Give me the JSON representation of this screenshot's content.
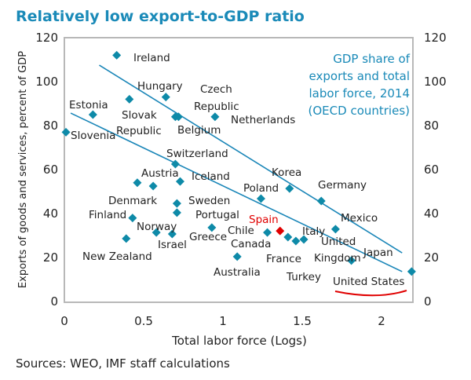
{
  "chart_data": {
    "type": "scatter",
    "title": "Relatively low export-to-GDP  ratio",
    "annotation": [
      "GDP share of",
      "exports and total",
      "labor force, 2014",
      "(OECD countries)"
    ],
    "xlabel": "Total labor force (Logs)",
    "ylabel": "Exports of goods and services, percent of GDP",
    "source": "Sources: WEO, IMF staff calculations",
    "xlim": [
      0,
      2.2
    ],
    "ylim": [
      0,
      120
    ],
    "xticks": [
      "0",
      "0.5",
      "1",
      "1.5",
      "2"
    ],
    "xtick_values": [
      0,
      0.5,
      1,
      1.5,
      2
    ],
    "yticks": [
      "0",
      "20",
      "40",
      "60",
      "80",
      "100",
      "120"
    ],
    "ytick_values": [
      0,
      20,
      40,
      60,
      80,
      100,
      120
    ],
    "grid": false,
    "colors": {
      "point": "#0e8aa8",
      "highlight": "#e00000",
      "trend": "#1a86b8",
      "title": "#1a8ab8"
    },
    "points": [
      {
        "x": 0.33,
        "y": 112,
        "label": "Ireland"
      },
      {
        "x": 0.64,
        "y": 93,
        "label": "Hungary"
      },
      {
        "x": 0.41,
        "y": 92,
        "label": "Slovak Republic"
      },
      {
        "x": 0.18,
        "y": 85,
        "label": "Estonia"
      },
      {
        "x": 0.01,
        "y": 77,
        "label": "Slovenia"
      },
      {
        "x": 0.7,
        "y": 84,
        "label": "Belgium"
      },
      {
        "x": 0.72,
        "y": 84,
        "label": ""
      },
      {
        "x": 0.95,
        "y": 84,
        "label": "Czech Republic"
      },
      {
        "x": 0.7,
        "y": 62.5,
        "label": "Switzerland"
      },
      {
        "x": 0.46,
        "y": 54,
        "label": "Denmark"
      },
      {
        "x": 0.56,
        "y": 52.5,
        "label": "Austria"
      },
      {
        "x": 0.73,
        "y": 54.6,
        "label": "Iceland"
      },
      {
        "x": 0.71,
        "y": 44.6,
        "label": "Sweden"
      },
      {
        "x": 0.71,
        "y": 40.4,
        "label": "Portugal"
      },
      {
        "x": 0.43,
        "y": 38,
        "label": "Finland"
      },
      {
        "x": 0.58,
        "y": 31.4,
        "label": "Norway"
      },
      {
        "x": 0.68,
        "y": 30.7,
        "label": "Israel"
      },
      {
        "x": 0.39,
        "y": 28.6,
        "label": "New Zealand"
      },
      {
        "x": 0.93,
        "y": 33.6,
        "label": "Greece"
      },
      {
        "x": 1.09,
        "y": 20.4,
        "label": "Australia"
      },
      {
        "x": 1.24,
        "y": 46.8,
        "label": "Poland"
      },
      {
        "x": 1.42,
        "y": 51.4,
        "label": "Korea"
      },
      {
        "x": 1.62,
        "y": 45.7,
        "label": "Germany"
      },
      {
        "x": 1.71,
        "y": 32.9,
        "label": "Mexico"
      },
      {
        "x": 1.28,
        "y": 31.4,
        "label": "Chile"
      },
      {
        "x": 1.36,
        "y": 32.1,
        "label": "Spain",
        "highlight": true
      },
      {
        "x": 1.41,
        "y": 29.3,
        "label": "Canada"
      },
      {
        "x": 1.46,
        "y": 27.5,
        "label": "France"
      },
      {
        "x": 1.51,
        "y": 28.2,
        "label": "Italy"
      },
      {
        "x": 1.81,
        "y": 18.6,
        "label": "United Kingdom"
      },
      {
        "x": 2.19,
        "y": 13.6,
        "label": "United States"
      }
    ],
    "extra_labels": [
      "Netherlands",
      "Turkey",
      "Japan"
    ],
    "trendlines": [
      {
        "x": [
          0.22,
          2.13
        ],
        "y": [
          107.5,
          22.1
        ]
      },
      {
        "x": [
          0.04,
          2.13
        ],
        "y": [
          85.7,
          13.6
        ]
      }
    ]
  }
}
